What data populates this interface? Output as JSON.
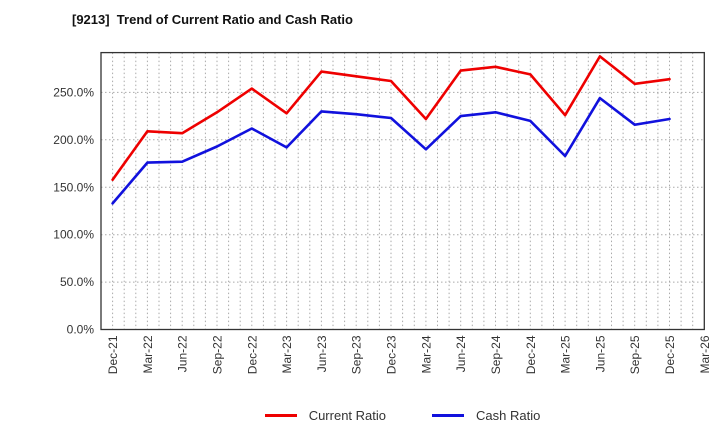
{
  "title": "[9213]  Trend of Current Ratio and Cash Ratio",
  "colors": {
    "current_ratio": "#ee0000",
    "cash_ratio": "#1111dd",
    "axis": "#333333",
    "grid": "#aaaaaa",
    "tick_text": "#333333",
    "title_text": "#111111"
  },
  "chart_data": {
    "type": "line",
    "title": "[9213]  Trend of Current Ratio and Cash Ratio",
    "xlabel": "",
    "ylabel": "",
    "grid": true,
    "legend_position": "bottom-center",
    "categories": [
      "Dec-21",
      "Mar-22",
      "Jun-22",
      "Sep-22",
      "Dec-22",
      "Mar-23",
      "Jun-23",
      "Sep-23",
      "Dec-23",
      "Mar-24",
      "Jun-24",
      "Sep-24",
      "Dec-24",
      "Mar-25",
      "Jun-25",
      "Sep-25",
      "Dec-25",
      "Mar-26"
    ],
    "unit": "%",
    "series": [
      {
        "name": "Current Ratio",
        "color": "#ee0000",
        "values": [
          158,
          209,
          207,
          229,
          254,
          228,
          272,
          267,
          262,
          222,
          273,
          277,
          269,
          226,
          288,
          259,
          264
        ]
      },
      {
        "name": "Cash Ratio",
        "color": "#1111dd",
        "values": [
          133,
          176,
          177,
          193,
          212,
          192,
          230,
          227,
          223,
          190,
          225,
          229,
          220,
          183,
          244,
          216,
          222
        ]
      }
    ],
    "ylim": [
      0,
      292
    ],
    "yticks": [
      0,
      50,
      100,
      150,
      200,
      250
    ],
    "ytick_labels": [
      "0.0%",
      "50.0%",
      "100.0%",
      "150.0%",
      "200.0%",
      "250.0%"
    ],
    "x_minor_total": 52,
    "x_first_point_minor": 1,
    "x_minor_per_category": 3
  },
  "legend": {
    "items": [
      {
        "label": "Current Ratio",
        "color": "#ee0000"
      },
      {
        "label": "Cash Ratio",
        "color": "#1111dd"
      }
    ]
  }
}
